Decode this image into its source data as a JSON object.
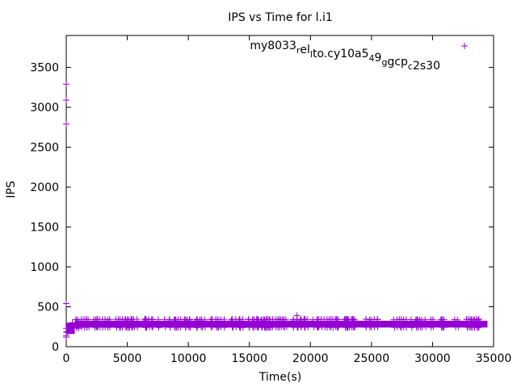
{
  "chart_data": {
    "type": "scatter",
    "title": "IPS vs Time for l.i1",
    "xlabel": "Time(s)",
    "ylabel": "IPS",
    "xlim": [
      0,
      35000
    ],
    "ylim": [
      0,
      3900
    ],
    "x_ticks": [
      0,
      5000,
      10000,
      15000,
      20000,
      25000,
      30000,
      35000
    ],
    "y_ticks": [
      0,
      500,
      1000,
      1500,
      2000,
      2500,
      3000,
      3500
    ],
    "legend": {
      "position": "top-right",
      "label_parts": [
        {
          "text": "my8033",
          "sub": false
        },
        {
          "text": "r",
          "sub": true
        },
        {
          "text": "el",
          "sub": false
        },
        {
          "text": "l",
          "sub": true
        },
        {
          "text": "to.cy10a5",
          "sub": false
        },
        {
          "text": "4",
          "sub": true
        },
        {
          "text": "9",
          "sub": false
        },
        {
          "text": "g",
          "sub": true
        },
        {
          "text": "g",
          "sub": false
        },
        {
          "text": "cp",
          "sub": false
        },
        {
          "text": "c",
          "sub": true
        },
        {
          "text": "2s30",
          "sub": false
        }
      ]
    },
    "marker": "+",
    "color": "#9400d3",
    "grid": false,
    "series": [
      {
        "name": "my8033_rel_lto.cy10a5_4_9g_gcp_c2s30",
        "band": {
          "x_start": 0,
          "x_end": 34500,
          "y_low": 240,
          "y_high": 345
        },
        "points": [
          {
            "x": 0,
            "y": 3290
          },
          {
            "x": 0,
            "y": 3090
          },
          {
            "x": 0,
            "y": 2790
          },
          {
            "x": 0,
            "y": 540
          },
          {
            "x": 0,
            "y": 230
          },
          {
            "x": 0,
            "y": 180
          },
          {
            "x": 0,
            "y": 140
          },
          {
            "x": 0,
            "y": 120
          },
          {
            "x": 100,
            "y": 190
          },
          {
            "x": 200,
            "y": 260
          },
          {
            "x": 300,
            "y": 200
          },
          {
            "x": 500,
            "y": 300
          },
          {
            "x": 800,
            "y": 340
          },
          {
            "x": 1000,
            "y": 230
          },
          {
            "x": 18900,
            "y": 390
          }
        ]
      }
    ]
  }
}
